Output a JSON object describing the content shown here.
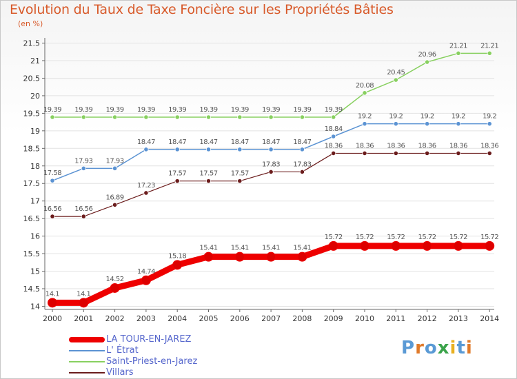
{
  "title": "Evolution du Taux de Taxe Foncière sur les Propriétés Bâties",
  "unit": "(en %)",
  "logo": {
    "text": "Proxiti",
    "letter_colors": [
      "#5a9ad5",
      "#e07a2a",
      "#5a9ad5",
      "#3aa34a",
      "#e8b020",
      "#5a9ad5",
      "#e07a2a"
    ]
  },
  "chart_data": {
    "type": "line",
    "x": [
      "2000",
      "2001",
      "2002",
      "2003",
      "2004",
      "2005",
      "2006",
      "2007",
      "2008",
      "2009",
      "2010",
      "2011",
      "2012",
      "2013",
      "2014"
    ],
    "ylim": [
      13.95,
      21.55
    ],
    "yticks": [
      "14",
      "14.5",
      "15",
      "15.5",
      "16",
      "16.5",
      "17",
      "17.5",
      "18",
      "18.5",
      "19",
      "19.5",
      "20",
      "20.5",
      "21",
      "21.5"
    ],
    "grid": "horizontal",
    "legend_position": "bottom-left",
    "series": [
      {
        "name": "Villars",
        "color": "#6b1c1c",
        "width": 1.2,
        "marker": 3.2,
        "values": [
          16.56,
          16.56,
          16.89,
          17.23,
          17.57,
          17.57,
          17.57,
          17.83,
          17.83,
          18.36,
          18.36,
          18.36,
          18.36,
          18.36,
          18.36
        ],
        "labels": [
          "16.56",
          "16.56",
          "16.89",
          "17.23",
          "17.57",
          "17.57",
          "17.57",
          "17.83",
          "17.83",
          "18.36",
          "18.36",
          "18.36",
          "18.36",
          "18.36",
          "18.36"
        ]
      },
      {
        "name": "Saint-Priest-en-Jarez",
        "color": "#88d060",
        "width": 1.5,
        "marker": 3.2,
        "values": [
          19.39,
          19.39,
          19.39,
          19.39,
          19.39,
          19.39,
          19.39,
          19.39,
          19.39,
          19.39,
          20.08,
          20.45,
          20.96,
          21.21,
          21.21
        ],
        "labels": [
          "19.39",
          "19.39",
          "19.39",
          "19.39",
          "19.39",
          "19.39",
          "19.39",
          "19.39",
          "19.39",
          "19.39",
          "20.08",
          "20.45",
          "20.96",
          "21.21",
          "21.21"
        ]
      },
      {
        "name": "L' Étrat",
        "color": "#5b93d3",
        "width": 1.5,
        "marker": 3.2,
        "values": [
          17.58,
          17.93,
          17.93,
          18.47,
          18.47,
          18.47,
          18.47,
          18.47,
          18.47,
          18.84,
          19.2,
          19.2,
          19.2,
          19.2,
          19.2
        ],
        "labels": [
          "17.58",
          "17.93",
          "17.93",
          "18.47",
          "18.47",
          "18.47",
          "18.47",
          "18.47",
          "18.47",
          "18.84",
          "19.2",
          "19.2",
          "19.2",
          "19.2",
          "19.2"
        ]
      },
      {
        "name": "LA TOUR-EN-JAREZ",
        "color": "#ee0000",
        "width": 9,
        "marker": 6.5,
        "values": [
          14.1,
          14.1,
          14.52,
          14.74,
          15.18,
          15.41,
          15.41,
          15.41,
          15.41,
          15.72,
          15.72,
          15.72,
          15.72,
          15.72,
          15.72
        ],
        "labels": [
          "14.1",
          "14.1",
          "14.52",
          "14.74",
          "15.18",
          "15.41",
          "15.41",
          "15.41",
          "15.41",
          "15.72",
          "15.72",
          "15.72",
          "15.72",
          "15.72",
          "15.72"
        ]
      }
    ],
    "legend_order": [
      "LA TOUR-EN-JAREZ",
      "L' Étrat",
      "Saint-Priest-en-Jarez",
      "Villars"
    ]
  }
}
